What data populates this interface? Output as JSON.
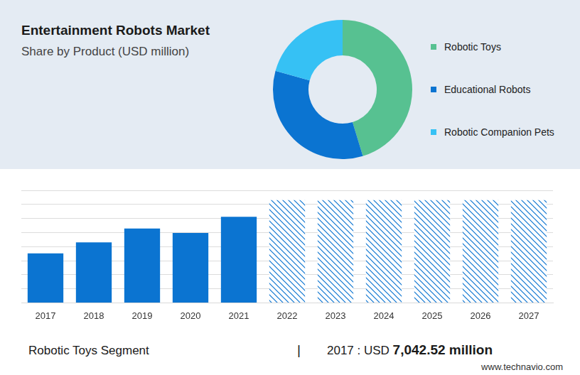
{
  "chart_data": [
    {
      "type": "doughnut",
      "title": "Entertainment Robots Market",
      "subtitle": "Share by Product (USD million)",
      "categories": [
        "Robotic Toys",
        "Educational Robots",
        "Robotic Companion Pets"
      ],
      "values": [
        45.3,
        34.0,
        20.7
      ],
      "colors": [
        "#57c191",
        "#0b74d1",
        "#36c1f4"
      ],
      "legend": "right"
    },
    {
      "type": "bar",
      "categories": [
        "2017",
        "2018",
        "2019",
        "2020",
        "2021",
        "2022",
        "2023",
        "2024",
        "2025",
        "2026",
        "2027"
      ],
      "series": [
        {
          "color": "#0b74d1",
          "values": [
            7042.52,
            8600,
            10570,
            9950,
            12230,
            null,
            null,
            null,
            null,
            null,
            null
          ]
        },
        {
          "color": "#0b74d1",
          "marker": "hatch",
          "values": [
            null,
            null,
            null,
            null,
            null,
            14600,
            14600,
            14600,
            14600,
            14600,
            14600
          ]
        }
      ],
      "ylim": [
        0,
        16000
      ],
      "yticks": [
        0,
        2000,
        4000,
        6000,
        8000,
        10000,
        12000,
        14000,
        16000
      ],
      "grid": true,
      "tick_labels": "x"
    }
  ],
  "footer": {
    "segment": "Robotic Toys Segment",
    "separator": "|",
    "year_label": "2017 : USD",
    "value_text": "7,042.52 million"
  },
  "source": "www.technavio.com"
}
